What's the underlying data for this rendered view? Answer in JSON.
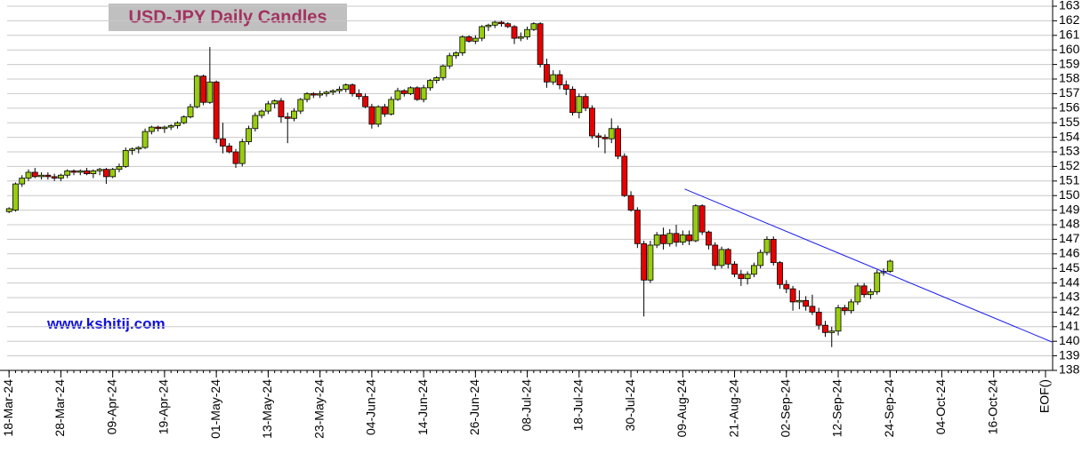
{
  "chart_data": {
    "type": "candlestick",
    "title": "USD-JPY Daily Candles",
    "watermark": "www.kshitij.com",
    "categories": [
      "18-Mar-24",
      null,
      null,
      null,
      null,
      null,
      null,
      null,
      "28-Mar-24",
      null,
      null,
      null,
      null,
      null,
      null,
      null,
      "09-Apr-24",
      null,
      null,
      null,
      null,
      null,
      null,
      null,
      "19-Apr-24",
      null,
      null,
      null,
      null,
      null,
      null,
      null,
      "01-May-24",
      null,
      null,
      null,
      null,
      null,
      null,
      null,
      "13-May-24",
      null,
      null,
      null,
      null,
      null,
      null,
      null,
      "23-May-24",
      null,
      null,
      null,
      null,
      null,
      null,
      null,
      "04-Jun-24",
      null,
      null,
      null,
      null,
      null,
      null,
      null,
      "14-Jun-24",
      null,
      null,
      null,
      null,
      null,
      null,
      null,
      "26-Jun-24",
      null,
      null,
      null,
      null,
      null,
      null,
      null,
      "08-Jul-24",
      null,
      null,
      null,
      null,
      null,
      null,
      null,
      "18-Jul-24",
      null,
      null,
      null,
      null,
      null,
      null,
      null,
      "30-Jul-24",
      null,
      null,
      null,
      null,
      null,
      null,
      null,
      "09-Aug-24",
      null,
      null,
      null,
      null,
      null,
      null,
      null,
      "21-Aug-24",
      null,
      null,
      null,
      null,
      null,
      null,
      null,
      "02-Sep-24",
      null,
      null,
      null,
      null,
      null,
      null,
      null,
      "12-Sep-24",
      null,
      null,
      null,
      null,
      null,
      null,
      null,
      "24-Sep-24",
      null,
      null,
      null,
      null,
      null,
      null,
      null,
      "04-Oct-24",
      null,
      null,
      null,
      null,
      null,
      null,
      null,
      "16-Oct-24",
      null,
      null,
      null,
      null,
      null,
      null,
      null,
      "EOF()"
    ],
    "ohlc": [
      [
        148.9,
        149.2,
        148.8,
        149.1
      ],
      [
        149.0,
        150.9,
        148.9,
        150.8
      ],
      [
        150.8,
        151.4,
        150.6,
        151.2
      ],
      [
        151.2,
        151.8,
        151.0,
        151.6
      ],
      [
        151.6,
        151.9,
        151.2,
        151.3
      ],
      [
        151.3,
        151.6,
        151.1,
        151.4
      ],
      [
        151.4,
        151.6,
        151.1,
        151.3
      ],
      [
        151.3,
        151.5,
        151.0,
        151.2
      ],
      [
        151.2,
        151.5,
        151.0,
        151.4
      ],
      [
        151.4,
        151.8,
        151.2,
        151.7
      ],
      [
        151.7,
        151.8,
        151.4,
        151.6
      ],
      [
        151.6,
        151.8,
        151.4,
        151.7
      ],
      [
        151.7,
        151.9,
        151.4,
        151.5
      ],
      [
        151.5,
        151.8,
        151.2,
        151.7
      ],
      [
        151.7,
        151.9,
        151.4,
        151.8
      ],
      [
        151.8,
        151.9,
        150.8,
        151.3
      ],
      [
        151.3,
        151.9,
        151.2,
        151.8
      ],
      [
        151.8,
        152.2,
        151.6,
        152.0
      ],
      [
        152.0,
        153.3,
        151.9,
        153.1
      ],
      [
        153.1,
        153.3,
        152.8,
        153.2
      ],
      [
        153.2,
        153.4,
        152.9,
        153.3
      ],
      [
        153.3,
        154.6,
        153.2,
        154.4
      ],
      [
        154.4,
        154.8,
        154.2,
        154.7
      ],
      [
        154.7,
        154.8,
        154.4,
        154.6
      ],
      [
        154.6,
        154.8,
        154.3,
        154.7
      ],
      [
        154.7,
        154.9,
        154.5,
        154.8
      ],
      [
        154.8,
        155.1,
        154.6,
        155.0
      ],
      [
        155.0,
        155.5,
        154.9,
        155.4
      ],
      [
        155.4,
        156.3,
        155.3,
        156.1
      ],
      [
        156.1,
        158.3,
        156.0,
        158.2
      ],
      [
        158.2,
        158.3,
        156.2,
        156.4
      ],
      [
        156.4,
        160.2,
        156.3,
        157.8
      ],
      [
        157.8,
        157.9,
        153.6,
        153.9
      ],
      [
        153.9,
        155.0,
        152.9,
        153.4
      ],
      [
        153.4,
        153.6,
        152.9,
        153.0
      ],
      [
        153.0,
        153.2,
        151.9,
        152.2
      ],
      [
        152.2,
        153.9,
        152.0,
        153.7
      ],
      [
        153.7,
        154.8,
        153.5,
        154.6
      ],
      [
        154.6,
        155.7,
        154.4,
        155.5
      ],
      [
        155.5,
        155.9,
        155.3,
        155.8
      ],
      [
        155.8,
        156.5,
        155.6,
        156.3
      ],
      [
        156.3,
        156.6,
        156.0,
        156.5
      ],
      [
        156.5,
        156.7,
        155.0,
        155.4
      ],
      [
        155.4,
        155.7,
        153.6,
        155.3
      ],
      [
        155.3,
        156.0,
        155.1,
        155.8
      ],
      [
        155.8,
        156.7,
        155.6,
        156.6
      ],
      [
        156.6,
        157.1,
        156.4,
        157.0
      ],
      [
        157.0,
        157.1,
        156.7,
        156.9
      ],
      [
        156.9,
        157.2,
        156.7,
        157.0
      ],
      [
        157.0,
        157.2,
        156.8,
        157.1
      ],
      [
        157.1,
        157.3,
        156.9,
        157.2
      ],
      [
        157.2,
        157.5,
        157.0,
        157.3
      ],
      [
        157.3,
        157.7,
        157.1,
        157.6
      ],
      [
        157.6,
        157.7,
        156.8,
        157.0
      ],
      [
        157.0,
        157.3,
        156.6,
        156.8
      ],
      [
        156.8,
        157.0,
        156.0,
        156.1
      ],
      [
        156.1,
        156.3,
        154.6,
        154.9
      ],
      [
        154.9,
        156.2,
        154.7,
        156.1
      ],
      [
        156.1,
        156.3,
        155.4,
        155.6
      ],
      [
        155.6,
        156.8,
        155.5,
        156.6
      ],
      [
        156.6,
        157.4,
        156.5,
        157.2
      ],
      [
        157.2,
        157.3,
        156.8,
        157.0
      ],
      [
        157.0,
        157.5,
        156.9,
        157.4
      ],
      [
        157.4,
        157.5,
        156.5,
        156.6
      ],
      [
        156.6,
        157.6,
        156.4,
        157.4
      ],
      [
        157.4,
        158.0,
        157.2,
        157.9
      ],
      [
        157.9,
        158.2,
        157.7,
        158.1
      ],
      [
        158.1,
        159.0,
        157.9,
        158.9
      ],
      [
        158.9,
        159.8,
        158.7,
        159.6
      ],
      [
        159.6,
        159.9,
        159.4,
        159.8
      ],
      [
        159.8,
        161.0,
        159.6,
        160.9
      ],
      [
        160.9,
        161.0,
        160.5,
        160.6
      ],
      [
        160.6,
        161.0,
        160.4,
        160.8
      ],
      [
        160.8,
        161.7,
        160.6,
        161.6
      ],
      [
        161.6,
        161.8,
        161.3,
        161.7
      ],
      [
        161.7,
        162.0,
        161.5,
        161.9
      ],
      [
        161.9,
        162.0,
        161.6,
        161.8
      ],
      [
        161.8,
        161.9,
        161.5,
        161.6
      ],
      [
        161.6,
        161.7,
        160.4,
        160.8
      ],
      [
        160.8,
        161.2,
        160.6,
        160.9
      ],
      [
        160.9,
        161.6,
        160.7,
        161.4
      ],
      [
        161.4,
        161.9,
        161.3,
        161.8
      ],
      [
        161.8,
        161.9,
        158.8,
        159.0
      ],
      [
        159.0,
        159.4,
        157.4,
        157.8
      ],
      [
        157.8,
        158.6,
        157.6,
        158.3
      ],
      [
        158.3,
        158.6,
        157.3,
        157.6
      ],
      [
        157.6,
        157.9,
        156.9,
        157.3
      ],
      [
        157.3,
        157.5,
        155.5,
        155.7
      ],
      [
        155.7,
        157.0,
        155.3,
        156.8
      ],
      [
        156.8,
        157.0,
        155.8,
        156.0
      ],
      [
        156.0,
        156.2,
        153.9,
        154.1
      ],
      [
        154.1,
        154.3,
        153.3,
        154.0
      ],
      [
        154.0,
        154.2,
        152.9,
        153.9
      ],
      [
        153.9,
        155.3,
        153.6,
        154.6
      ],
      [
        154.6,
        154.8,
        152.5,
        152.7
      ],
      [
        152.7,
        152.9,
        149.9,
        150.0
      ],
      [
        150.0,
        150.3,
        148.9,
        149.0
      ],
      [
        149.0,
        149.2,
        146.4,
        146.7
      ],
      [
        146.7,
        146.9,
        141.7,
        144.2
      ],
      [
        144.2,
        146.9,
        144.0,
        146.6
      ],
      [
        146.6,
        147.5,
        146.4,
        147.3
      ],
      [
        147.3,
        147.8,
        146.3,
        146.7
      ],
      [
        146.7,
        147.7,
        146.5,
        147.4
      ],
      [
        147.4,
        148.0,
        146.5,
        146.8
      ],
      [
        146.8,
        147.6,
        146.6,
        147.3
      ],
      [
        147.3,
        147.6,
        146.6,
        146.9
      ],
      [
        146.9,
        149.4,
        146.8,
        149.3
      ],
      [
        149.3,
        149.4,
        147.3,
        147.5
      ],
      [
        147.5,
        147.6,
        146.3,
        146.6
      ],
      [
        146.6,
        146.8,
        144.9,
        145.2
      ],
      [
        145.2,
        146.5,
        145.0,
        146.3
      ],
      [
        146.3,
        146.4,
        145.0,
        145.3
      ],
      [
        145.3,
        145.5,
        144.4,
        144.6
      ],
      [
        144.6,
        144.9,
        143.8,
        144.3
      ],
      [
        144.3,
        144.8,
        143.9,
        144.6
      ],
      [
        144.6,
        145.4,
        144.4,
        145.2
      ],
      [
        145.2,
        146.3,
        145.0,
        146.1
      ],
      [
        146.1,
        147.2,
        145.9,
        147.0
      ],
      [
        147.0,
        147.2,
        145.2,
        145.4
      ],
      [
        145.4,
        145.5,
        143.6,
        143.9
      ],
      [
        143.9,
        144.2,
        143.3,
        143.6
      ],
      [
        143.6,
        143.8,
        142.1,
        142.7
      ],
      [
        142.7,
        143.5,
        142.2,
        142.8
      ],
      [
        142.8,
        143.1,
        142.1,
        142.4
      ],
      [
        142.4,
        143.2,
        141.8,
        142.0
      ],
      [
        142.0,
        142.3,
        140.8,
        141.1
      ],
      [
        141.1,
        141.4,
        140.3,
        140.6
      ],
      [
        140.6,
        141.0,
        139.6,
        140.7
      ],
      [
        140.7,
        142.5,
        140.4,
        142.3
      ],
      [
        142.3,
        142.5,
        141.8,
        142.1
      ],
      [
        142.1,
        142.9,
        141.9,
        142.7
      ],
      [
        142.7,
        144.0,
        142.5,
        143.8
      ],
      [
        143.8,
        144.0,
        143.0,
        143.2
      ],
      [
        143.2,
        143.6,
        142.9,
        143.4
      ],
      [
        143.4,
        144.9,
        143.2,
        144.7
      ],
      [
        144.7,
        145.0,
        144.5,
        144.8
      ],
      [
        144.8,
        145.6,
        144.7,
        145.5
      ],
      null,
      null,
      null,
      null,
      null,
      null,
      null,
      null,
      null,
      null,
      null,
      null,
      null,
      null,
      null,
      null,
      null,
      null,
      null,
      null,
      null,
      null,
      null,
      null
    ],
    "up_color": "#99cc11",
    "down_color": "#e80000",
    "trendline": {
      "x": [
        104.3,
        161.0
      ],
      "y": [
        150.45,
        139.95
      ],
      "color": "#1a1aee"
    },
    "ylim": [
      138,
      163
    ],
    "yticks": [
      138,
      139,
      140,
      141,
      142,
      143,
      144,
      145,
      146,
      147,
      148,
      149,
      150,
      151,
      152,
      153,
      154,
      155,
      156,
      157,
      158,
      159,
      160,
      161,
      162,
      163
    ],
    "xlim": [
      -0.3,
      161.1
    ],
    "grid": true
  }
}
